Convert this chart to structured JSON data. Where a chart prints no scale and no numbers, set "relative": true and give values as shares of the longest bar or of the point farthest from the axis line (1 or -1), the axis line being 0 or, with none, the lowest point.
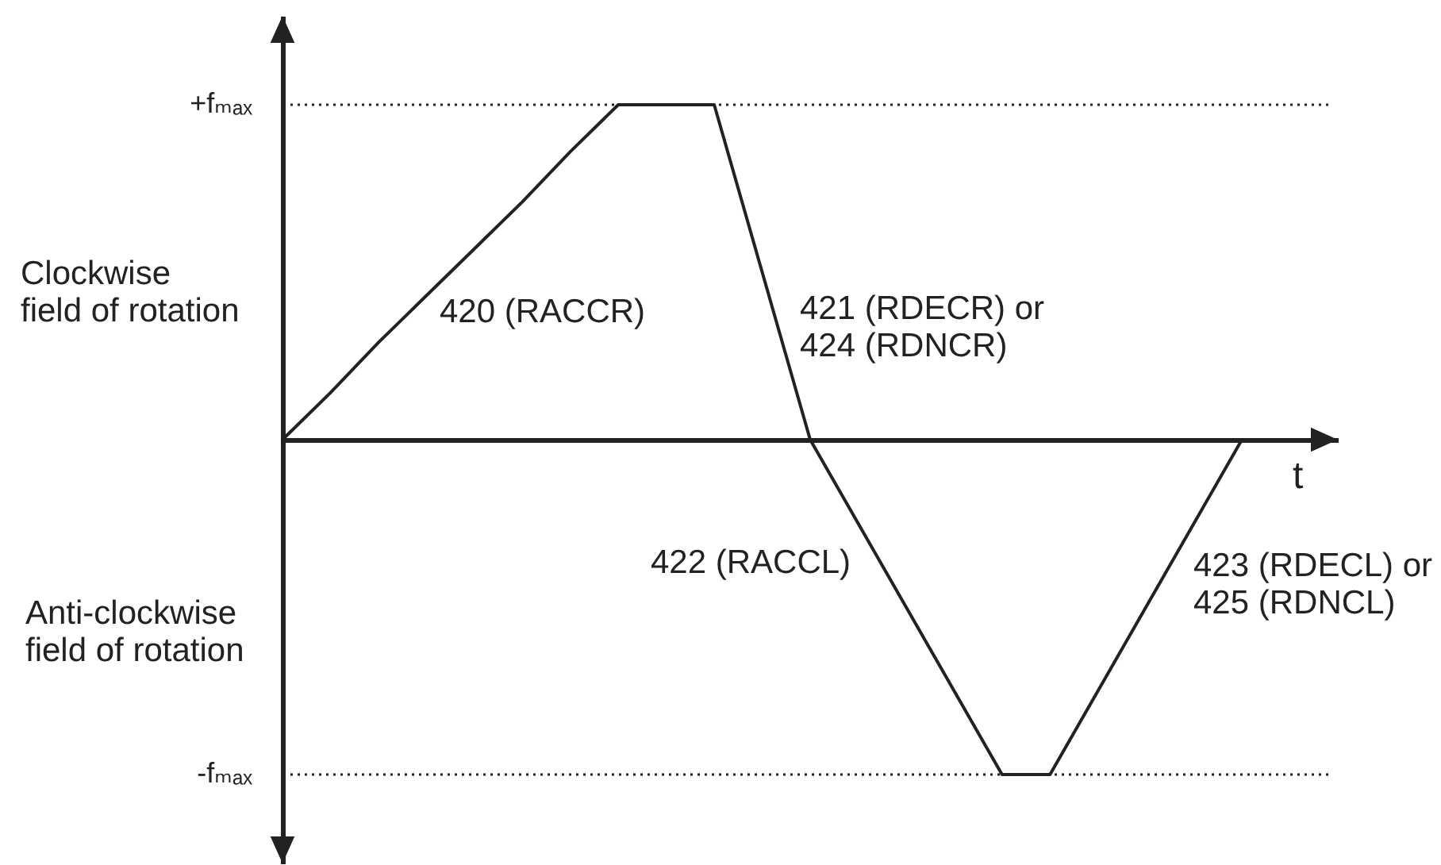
{
  "chart_data": {
    "type": "line",
    "relative": true,
    "xlabel": "t",
    "categories": [
      null,
      null,
      null,
      null,
      null,
      null,
      null,
      null,
      null,
      null,
      null,
      null,
      null,
      null,
      null,
      null,
      null,
      null,
      null,
      null,
      null,
      null,
      null
    ],
    "values": [
      0,
      0.14,
      0.29,
      0.43,
      0.57,
      0.71,
      0.86,
      1,
      1,
      1,
      0.5,
      0,
      -0.25,
      -0.5,
      -0.75,
      -1,
      -1,
      -0.75,
      -0.5,
      -0.25,
      0,
      null,
      null
    ],
    "color": "#222222",
    "ref_lines": [
      {
        "axis": "y",
        "value": 1,
        "label": "+fₘₐₓ",
        "line_style": "dotted",
        "color": "#222222"
      },
      {
        "axis": "y",
        "value": -1,
        "label": "-fₘₐₓ",
        "line_style": "dotted",
        "color": "#222222"
      }
    ],
    "annotations": [
      "Clockwise\nfield of rotation",
      "Anti-clockwise\nfield of rotation",
      "420 (RACCR)",
      "421 (RDECR) or\n424 (RDNCR)",
      "422 (RACCL)",
      "423 (RDECL) or\n425 (RDNCL)"
    ]
  }
}
